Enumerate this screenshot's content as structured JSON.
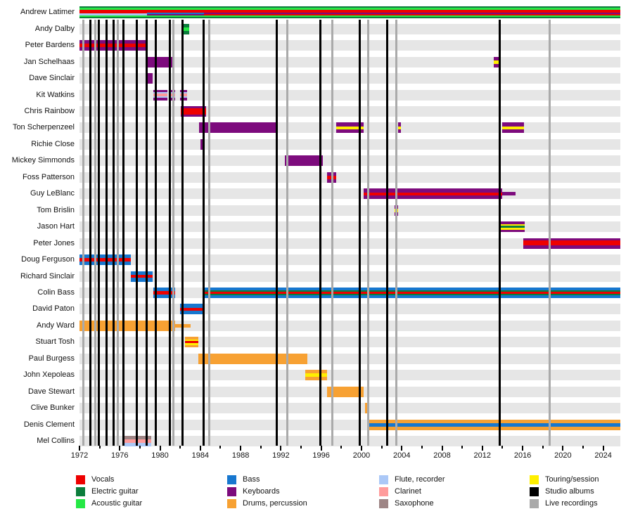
{
  "chart_data": {
    "type": "timeline",
    "title": "",
    "x_axis": {
      "start": 1972,
      "end": 2025.7,
      "major_ticks": [
        1972,
        1976,
        1980,
        1984,
        1988,
        1992,
        1996,
        2000,
        2004,
        2008,
        2012,
        2016,
        2020,
        2024
      ],
      "minor_tick_step": 2
    },
    "colors": {
      "vocals": "#ee0000",
      "electric_guitar": "#0c7d3c",
      "acoustic_guitar": "#25e845",
      "bass": "#1777cf",
      "keyboards": "#7d0b7d",
      "drums": "#f7a133",
      "flute": "#abc8f7",
      "clarinet": "#ff9b9b",
      "saxophone": "#9e8585",
      "touring": "#ffef00",
      "studio": "#000000",
      "live": "#aaaaaa",
      "row_band": "#e6e6e6"
    },
    "members": [
      {
        "name": "Andrew Latimer",
        "bars": [
          {
            "start": 1972,
            "end": 1978.7,
            "stripes": [
              "electric_guitar",
              "acoustic_guitar",
              "vocals",
              "flute",
              "acoustic_guitar",
              "electric_guitar"
            ],
            "weights": [
              2,
              3,
              5,
              3,
              2,
              2
            ]
          },
          {
            "start": 1978.7,
            "end": 1984.35,
            "stripes": [
              "electric_guitar",
              "acoustic_guitar",
              "vocals",
              "bass",
              "keyboards",
              "acoustic_guitar",
              "electric_guitar"
            ],
            "weights": [
              2,
              3,
              4,
              2,
              2,
              2,
              2
            ]
          },
          {
            "start": 1984.35,
            "end": 2025.7,
            "stripes": [
              "electric_guitar",
              "acoustic_guitar",
              "vocals",
              "keyboards",
              "vocals",
              "acoustic_guitar",
              "electric_guitar"
            ],
            "weights": [
              2,
              3,
              4,
              2,
              2,
              2,
              2
            ]
          }
        ]
      },
      {
        "name": "Andy Dalby",
        "bars": [
          {
            "start": 1982.1,
            "end": 1982.9,
            "stripes": [
              "electric_guitar",
              "acoustic_guitar",
              "electric_guitar"
            ],
            "weights": [
              1,
              1,
              1
            ]
          }
        ]
      },
      {
        "name": "Peter Bardens",
        "bars": [
          {
            "start": 1972,
            "end": 1978.55,
            "stripes": [
              "keyboards",
              "vocals",
              "keyboards"
            ],
            "weights": [
              1.2,
              1.1,
              1.2
            ]
          }
        ]
      },
      {
        "name": "Jan Schelhaas",
        "bars": [
          {
            "start": 1978.55,
            "end": 1981.4,
            "stripes": [
              "keyboards"
            ],
            "weights": [
              1
            ]
          },
          {
            "start": 2013.15,
            "end": 2013.8,
            "stripes": [
              "keyboards",
              "touring",
              "keyboards"
            ],
            "weights": [
              1,
              1,
              1
            ]
          }
        ]
      },
      {
        "name": "Dave Sinclair",
        "bars": [
          {
            "start": 1978.55,
            "end": 1979.25,
            "stripes": [
              "keyboards"
            ],
            "weights": [
              1
            ]
          }
        ]
      },
      {
        "name": "Kit Watkins",
        "bars": [
          {
            "start": 1979.3,
            "end": 1980.75,
            "stripes": [
              "keyboards",
              "flute",
              "clarinet",
              "flute",
              "keyboards"
            ],
            "weights": [
              1.4,
              0.8,
              1.2,
              0.8,
              1.4
            ]
          },
          {
            "start": 1981.05,
            "end": 1981.5,
            "stripes": [
              "keyboards",
              "flute",
              "clarinet",
              "flute",
              "keyboards"
            ],
            "weights": [
              1.4,
              0.8,
              1.2,
              0.8,
              1.4
            ]
          },
          {
            "start": 1982.0,
            "end": 1982.7,
            "stripes": [
              "keyboards",
              "flute",
              "clarinet",
              "flute",
              "keyboards"
            ],
            "weights": [
              1.4,
              0.8,
              1.2,
              0.8,
              1.4
            ]
          }
        ]
      },
      {
        "name": "Chris Rainbow",
        "bars": [
          {
            "start": 1982.05,
            "end": 1984.6,
            "stripes": [
              "keyboards",
              "vocals",
              "keyboards"
            ],
            "weights": [
              0.8,
              2.2,
              0.8
            ]
          }
        ]
      },
      {
        "name": "Ton Scherpenzeel",
        "bars": [
          {
            "start": 1983.9,
            "end": 1991.55,
            "stripes": [
              "keyboards"
            ],
            "weights": [
              1
            ]
          },
          {
            "start": 1997.5,
            "end": 2000.2,
            "stripes": [
              "keyboards",
              "touring",
              "keyboards"
            ],
            "weights": [
              1.2,
              1,
              1.2
            ]
          },
          {
            "start": 2003.65,
            "end": 2003.9,
            "stripes": [
              "keyboards",
              "touring",
              "keyboards"
            ],
            "weights": [
              1.2,
              1,
              1.2
            ]
          },
          {
            "start": 2014.0,
            "end": 2016.1,
            "stripes": [
              "keyboards",
              "touring",
              "keyboards"
            ],
            "weights": [
              1.2,
              1,
              1.2
            ]
          }
        ]
      },
      {
        "name": "Richie Close",
        "bars": [
          {
            "start": 1984.0,
            "end": 1984.45,
            "stripes": [
              "keyboards"
            ],
            "weights": [
              1
            ]
          }
        ]
      },
      {
        "name": "Mickey Simmonds",
        "bars": [
          {
            "start": 1992.4,
            "end": 1996.15,
            "stripes": [
              "keyboards"
            ],
            "weights": [
              1
            ]
          }
        ]
      },
      {
        "name": "Foss Patterson",
        "bars": [
          {
            "start": 1996.6,
            "end": 1997.5,
            "stripes": [
              "keyboards",
              "vocals",
              "keyboards"
            ],
            "weights": [
              1.2,
              1,
              1.2
            ]
          }
        ]
      },
      {
        "name": "Guy LeBlanc",
        "bars": [
          {
            "start": 2000.2,
            "end": 2014.0,
            "stripes": [
              "keyboards",
              "vocals",
              "keyboards"
            ],
            "weights": [
              1.3,
              1,
              1.3
            ]
          },
          {
            "start": 2014.0,
            "end": 2015.3,
            "stripes": [
              "keyboards"
            ],
            "weights": [
              1
            ],
            "thin": true
          }
        ]
      },
      {
        "name": "Tom Brislin",
        "bars": [
          {
            "start": 2003.3,
            "end": 2003.6,
            "stripes": [
              "keyboards",
              "touring",
              "keyboards"
            ],
            "weights": [
              1,
              1,
              1
            ]
          }
        ]
      },
      {
        "name": "Jason Hart",
        "bars": [
          {
            "start": 2013.75,
            "end": 2016.2,
            "stripes": [
              "keyboards",
              "touring",
              "electric_guitar",
              "touring",
              "keyboards"
            ],
            "weights": [
              1.2,
              0.7,
              1.2,
              0.7,
              1.2
            ]
          }
        ]
      },
      {
        "name": "Peter Jones",
        "bars": [
          {
            "start": 2016.05,
            "end": 2025.7,
            "stripes": [
              "keyboards",
              "vocals",
              "keyboards"
            ],
            "weights": [
              0.8,
              1.6,
              1.2
            ]
          }
        ]
      },
      {
        "name": "Doug Ferguson",
        "bars": [
          {
            "start": 1972,
            "end": 1977.1,
            "stripes": [
              "bass",
              "vocals",
              "bass"
            ],
            "weights": [
              1.3,
              1,
              1.3
            ]
          }
        ]
      },
      {
        "name": "Richard Sinclair",
        "bars": [
          {
            "start": 1977.1,
            "end": 1979.25,
            "stripes": [
              "bass",
              "vocals",
              "bass"
            ],
            "weights": [
              1.3,
              1,
              1.3
            ]
          }
        ]
      },
      {
        "name": "Colin Bass",
        "bars": [
          {
            "start": 1979.3,
            "end": 1981.5,
            "stripes": [
              "bass",
              "vocals",
              "bass"
            ],
            "weights": [
              1.3,
              1,
              1.3
            ]
          },
          {
            "start": 1984.35,
            "end": 2025.7,
            "stripes": [
              "bass",
              "electric_guitar",
              "vocals",
              "electric_guitar",
              "bass"
            ],
            "weights": [
              1.3,
              0.7,
              1.2,
              0.7,
              1.3
            ]
          }
        ]
      },
      {
        "name": "David Paton",
        "bars": [
          {
            "start": 1982.0,
            "end": 1984.35,
            "stripes": [
              "bass",
              "vocals",
              "bass"
            ],
            "weights": [
              1.3,
              1,
              1.3
            ]
          }
        ]
      },
      {
        "name": "Andy Ward",
        "bars": [
          {
            "start": 1972,
            "end": 1981.5,
            "stripes": [
              "drums"
            ],
            "weights": [
              1
            ]
          },
          {
            "start": 1981.5,
            "end": 1983.05,
            "stripes": [
              "drums"
            ],
            "weights": [
              1
            ],
            "thin": true
          }
        ]
      },
      {
        "name": "Stuart Tosh",
        "bars": [
          {
            "start": 1982.45,
            "end": 1983.8,
            "stripes": [
              "drums",
              "touring",
              "vocals",
              "touring",
              "drums"
            ],
            "weights": [
              1,
              0.8,
              1,
              0.8,
              1
            ]
          }
        ]
      },
      {
        "name": "Paul Burgess",
        "bars": [
          {
            "start": 1983.8,
            "end": 1994.6,
            "stripes": [
              "drums"
            ],
            "weights": [
              1
            ]
          }
        ]
      },
      {
        "name": "John Xepoleas",
        "bars": [
          {
            "start": 1994.4,
            "end": 1996.6,
            "stripes": [
              "drums",
              "touring",
              "drums"
            ],
            "weights": [
              1,
              1,
              1
            ]
          }
        ]
      },
      {
        "name": "Dave Stewart",
        "bars": [
          {
            "start": 1996.6,
            "end": 2000.2,
            "stripes": [
              "drums"
            ],
            "weights": [
              1
            ]
          }
        ]
      },
      {
        "name": "Clive Bunker",
        "bars": [
          {
            "start": 2000.35,
            "end": 2000.6,
            "stripes": [
              "drums"
            ],
            "weights": [
              1
            ]
          }
        ]
      },
      {
        "name": "Denis Clement",
        "bars": [
          {
            "start": 2000.65,
            "end": 2025.7,
            "stripes": [
              "drums",
              "bass",
              "drums"
            ],
            "weights": [
              1,
              1,
              1
            ]
          }
        ]
      },
      {
        "name": "Mel Collins",
        "bars": [
          {
            "start": 1976.5,
            "end": 1979.1,
            "stripes": [
              "saxophone",
              "clarinet",
              "flute"
            ],
            "weights": [
              1,
              1,
              1
            ]
          }
        ]
      }
    ],
    "events": {
      "studio_albums": [
        1973.05,
        1973.9,
        1974.7,
        1975.4,
        1976.35,
        1977.7,
        1978.65,
        1979.55,
        1980.95,
        1982.25,
        1984.35,
        1991.6,
        1995.9,
        1999.85,
        2002.55,
        2013.75
      ],
      "live_recordings": [
        1972.35,
        1973.6,
        1975.8,
        1981.35,
        1984.9,
        1992.65,
        1997.1,
        2000.65,
        2003.45,
        2018.65
      ]
    },
    "legend_columns": [
      [
        {
          "label": "Vocals",
          "color": "vocals"
        },
        {
          "label": "Electric guitar",
          "color": "electric_guitar"
        },
        {
          "label": "Acoustic guitar",
          "color": "acoustic_guitar"
        }
      ],
      [
        {
          "label": "Bass",
          "color": "bass"
        },
        {
          "label": "Keyboards",
          "color": "keyboards"
        },
        {
          "label": "Drums, percussion",
          "color": "drums"
        }
      ],
      [
        {
          "label": "Flute, recorder",
          "color": "flute"
        },
        {
          "label": "Clarinet",
          "color": "clarinet"
        },
        {
          "label": "Saxophone",
          "color": "saxophone"
        }
      ],
      [
        {
          "label": "Touring/session",
          "color": "touring"
        },
        {
          "label": "Studio albums",
          "color": "studio"
        },
        {
          "label": "Live recordings",
          "color": "live"
        }
      ]
    ]
  }
}
